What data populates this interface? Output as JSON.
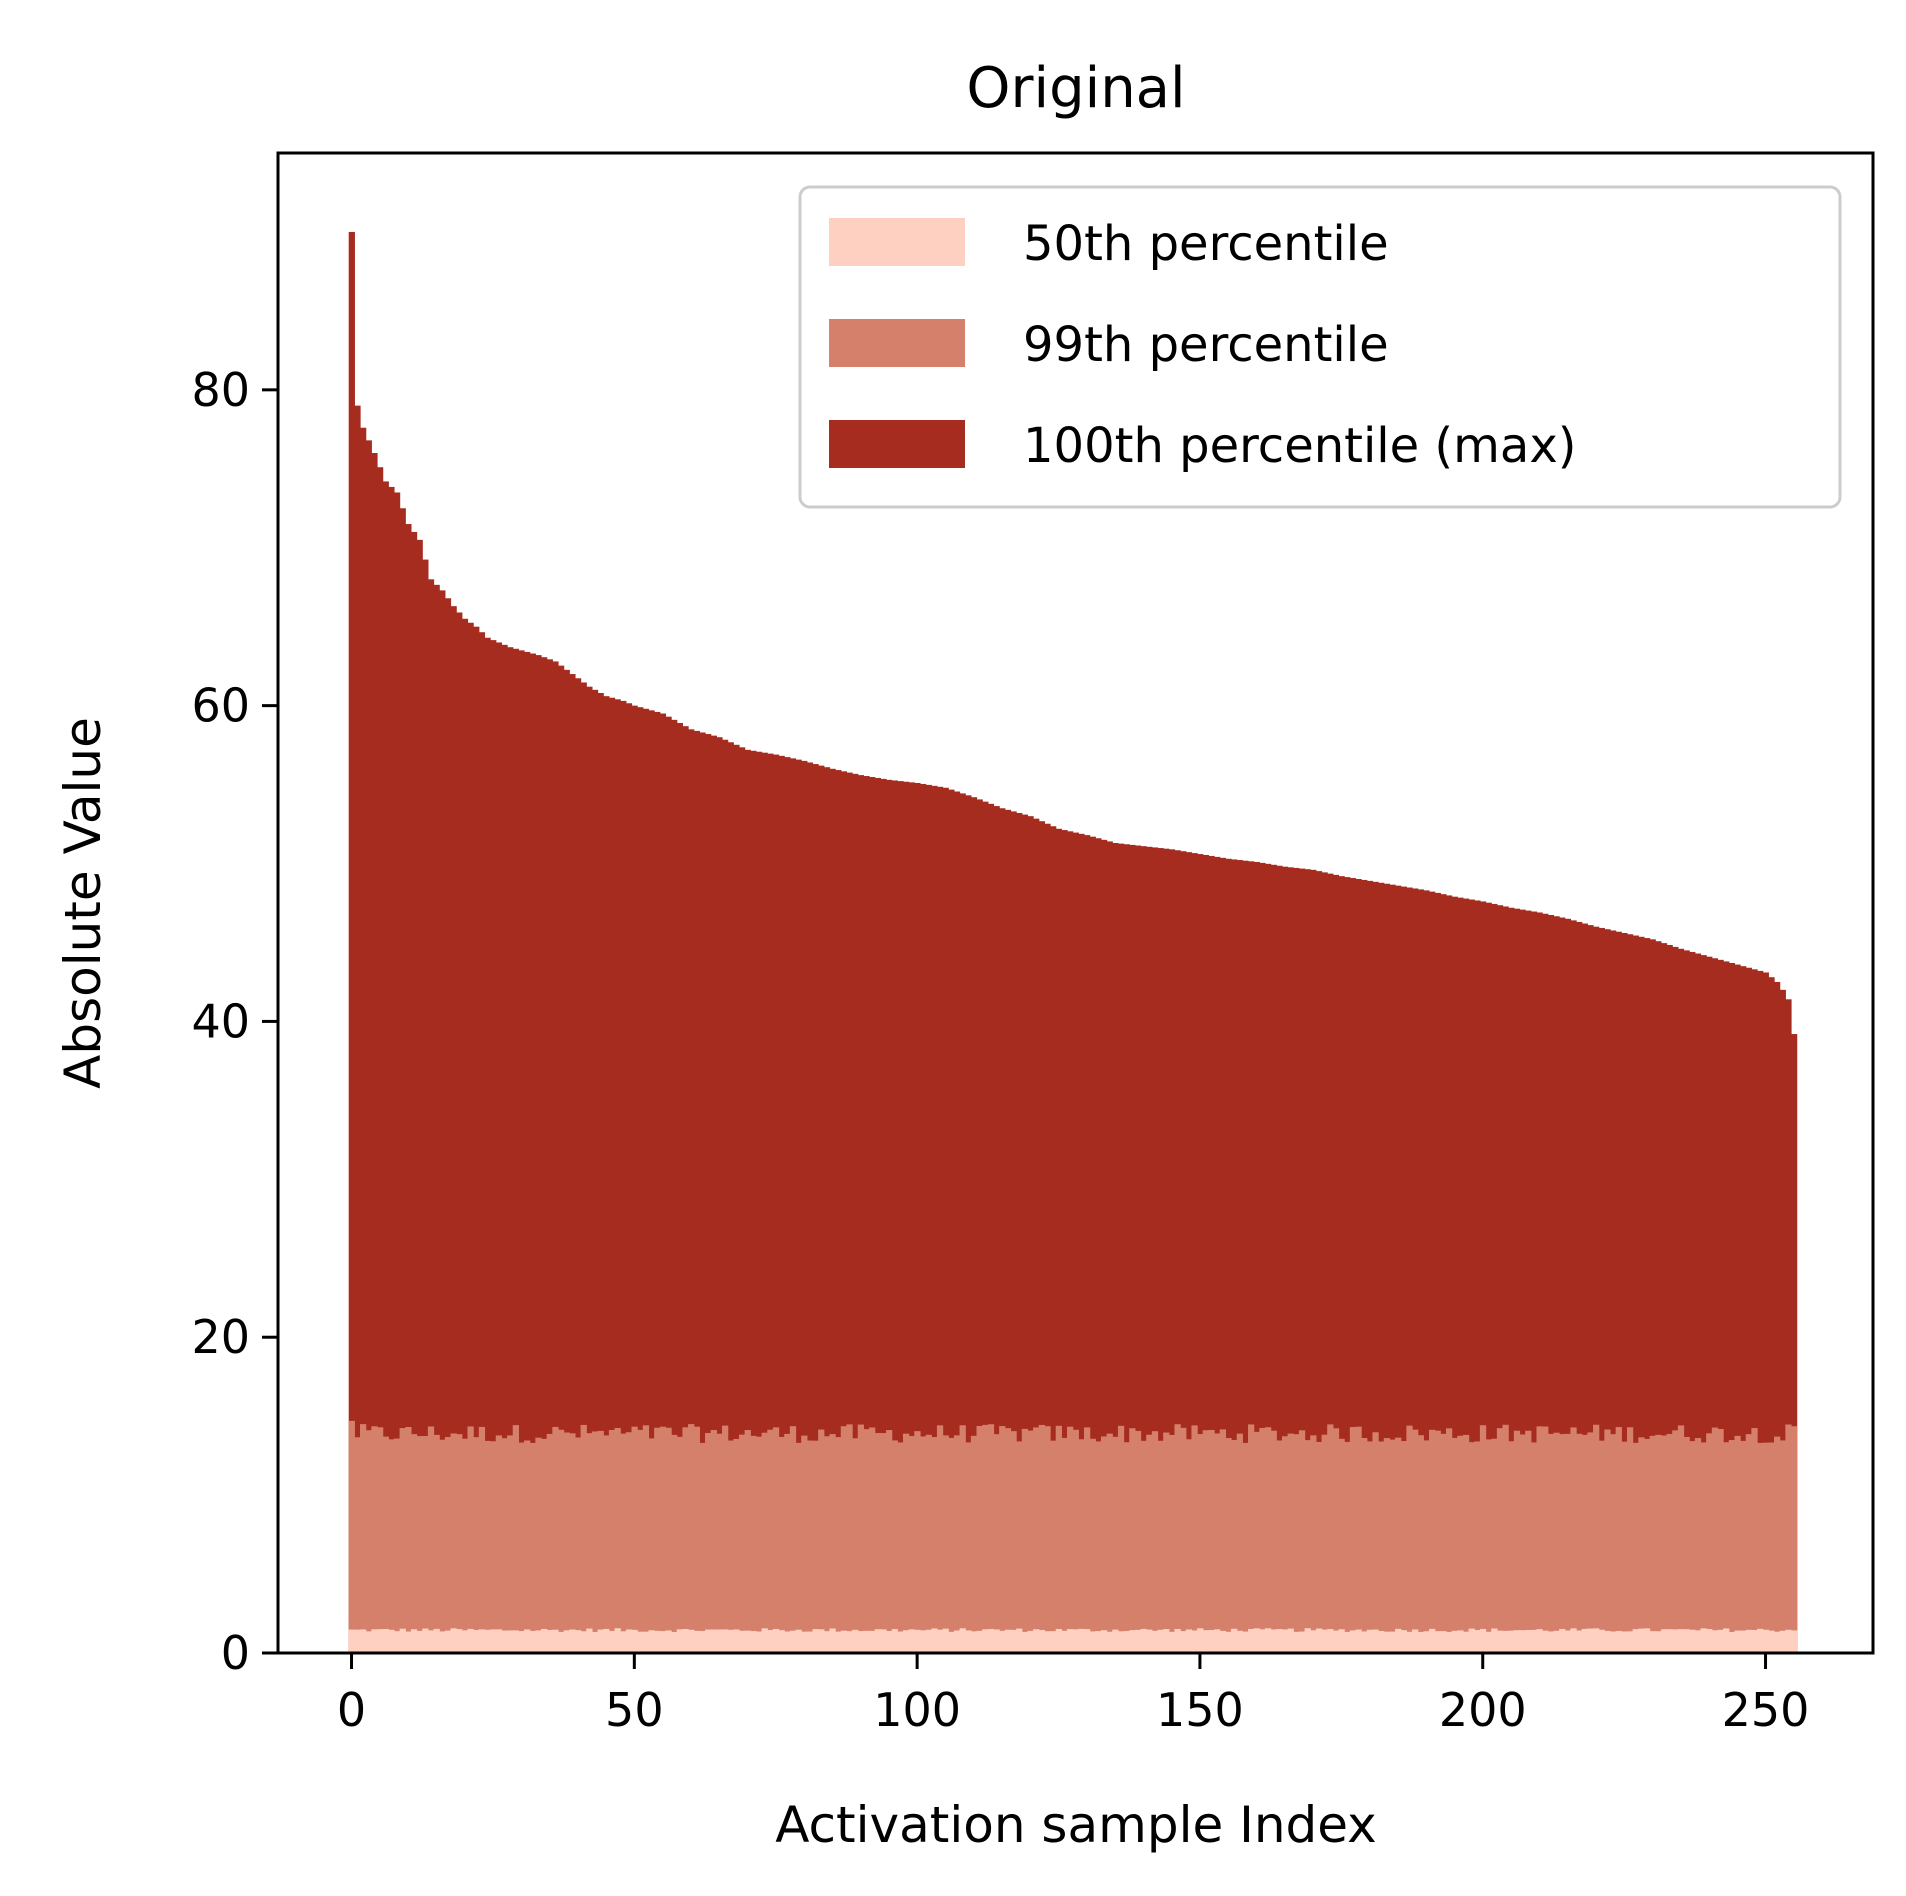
{
  "chart_data": {
    "type": "bar",
    "title": "Original",
    "xlabel": "Activation sample Index",
    "ylabel": "Absolute Value",
    "xlim": [
      -13,
      269
    ],
    "ylim": [
      0,
      95
    ],
    "xticks": [
      0,
      50,
      100,
      150,
      200,
      250
    ],
    "yticks": [
      0,
      20,
      40,
      60,
      80
    ],
    "n_samples": 256,
    "legend_position": "top-right",
    "grid": false,
    "series": [
      {
        "name": "100th percentile (max)",
        "color": "#a62c1f",
        "anchors_x": [
          0,
          1,
          2,
          4,
          6,
          8,
          10,
          12,
          14,
          16,
          18,
          20,
          22,
          24,
          26,
          28,
          30,
          33,
          36,
          39,
          42,
          45,
          48,
          50,
          55,
          60,
          65,
          70,
          75,
          80,
          85,
          90,
          95,
          100,
          105,
          110,
          115,
          120,
          125,
          130,
          135,
          140,
          145,
          150,
          155,
          160,
          165,
          170,
          175,
          180,
          185,
          190,
          195,
          200,
          205,
          210,
          215,
          220,
          225,
          230,
          235,
          240,
          245,
          250,
          252,
          253,
          254,
          255
        ],
        "anchors_y": [
          90,
          79,
          77.6,
          76,
          74.2,
          73.5,
          71.5,
          70.5,
          68,
          67.3,
          66.3,
          65.5,
          65,
          64.3,
          64,
          63.7,
          63.5,
          63.2,
          62.8,
          62,
          61.2,
          60.6,
          60.3,
          60,
          59.5,
          58.5,
          58,
          57.2,
          56.9,
          56.5,
          56,
          55.6,
          55.3,
          55.1,
          54.8,
          54.2,
          53.5,
          53,
          52.2,
          51.8,
          51.3,
          51.1,
          50.9,
          50.6,
          50.3,
          50.1,
          49.8,
          49.6,
          49.2,
          48.9,
          48.6,
          48.3,
          47.9,
          47.6,
          47.2,
          46.9,
          46.5,
          46,
          45.6,
          45.2,
          44.6,
          44.1,
          43.6,
          43.1,
          42.5,
          42,
          41.4,
          39.2
        ]
      },
      {
        "name": "99th percentile",
        "color": "#d4806a",
        "mean": 13.9,
        "jitter": 0.6,
        "first": 14.7
      },
      {
        "name": "50th percentile",
        "color": "#fdd0c2",
        "mean": 1.45,
        "jitter": 0.12
      }
    ]
  }
}
